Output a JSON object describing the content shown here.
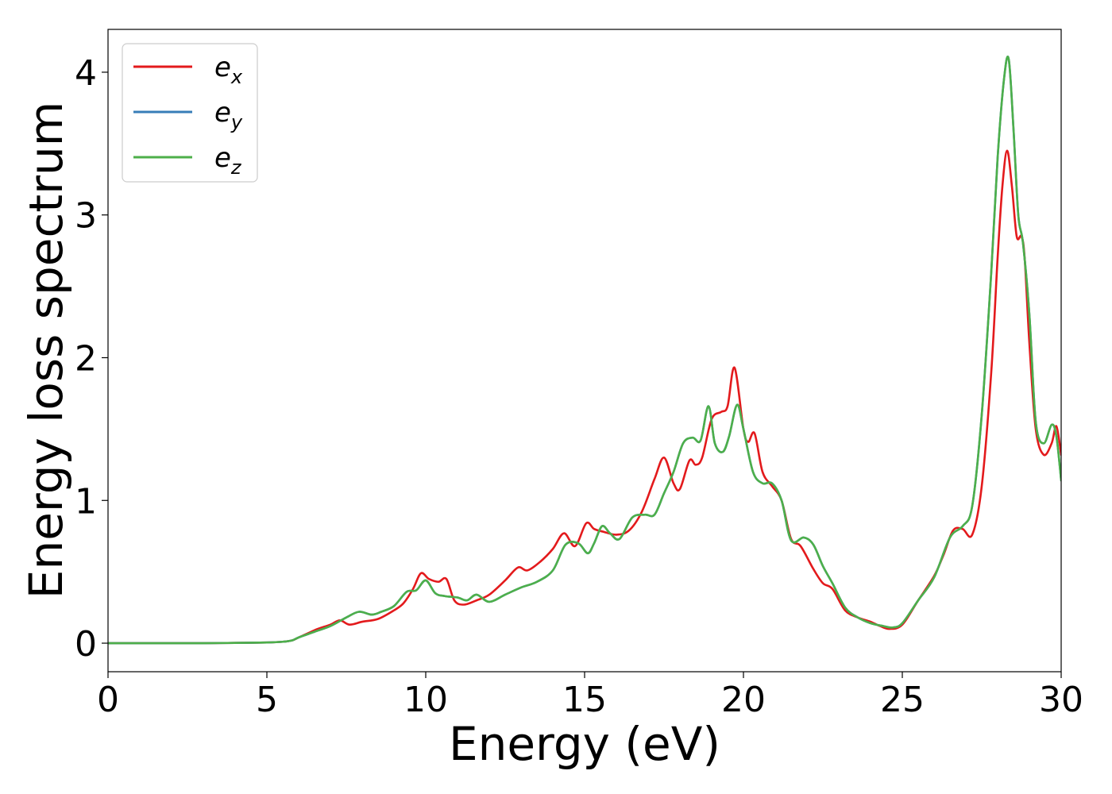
{
  "chart_data": {
    "type": "line",
    "xlabel": "Energy (eV)",
    "ylabel": "Energy loss spectrum",
    "xlim": [
      0,
      30
    ],
    "ylim": [
      -0.2,
      4.3
    ],
    "xticks": [
      0,
      5,
      10,
      15,
      20,
      25,
      30
    ],
    "yticks": [
      0,
      1,
      2,
      3,
      4
    ],
    "grid": false,
    "legend_position": "top-left",
    "series": [
      {
        "name": "e_x",
        "label_main": "e",
        "label_sub": "x",
        "color": "#e31a1c",
        "x": [
          0,
          1,
          2,
          3,
          4,
          5,
          5.5,
          5.8,
          6.0,
          6.3,
          6.6,
          7.0,
          7.3,
          7.6,
          8.0,
          8.5,
          9.0,
          9.3,
          9.6,
          9.85,
          10.1,
          10.4,
          10.65,
          10.9,
          11.2,
          11.6,
          12.0,
          12.5,
          12.9,
          13.2,
          13.6,
          14.0,
          14.35,
          14.7,
          15.05,
          15.3,
          15.6,
          16.0,
          16.4,
          16.8,
          17.2,
          17.5,
          17.8,
          18.0,
          18.3,
          18.5,
          18.7,
          19.0,
          19.3,
          19.5,
          19.72,
          20.0,
          20.15,
          20.35,
          20.6,
          20.9,
          21.2,
          21.5,
          21.8,
          22.2,
          22.5,
          22.8,
          23.2,
          23.6,
          24.0,
          24.3,
          24.6,
          25.0,
          25.5,
          26.0,
          26.3,
          26.6,
          26.9,
          27.2,
          27.5,
          27.8,
          28.0,
          28.15,
          28.3,
          28.45,
          28.6,
          28.75,
          28.85,
          29.0,
          29.2,
          29.45,
          29.7,
          29.85,
          30.0
        ],
        "values": [
          0,
          0,
          0,
          0,
          0.002,
          0.005,
          0.01,
          0.02,
          0.04,
          0.07,
          0.1,
          0.13,
          0.16,
          0.13,
          0.15,
          0.17,
          0.23,
          0.28,
          0.38,
          0.49,
          0.45,
          0.43,
          0.45,
          0.3,
          0.27,
          0.3,
          0.34,
          0.44,
          0.53,
          0.51,
          0.57,
          0.66,
          0.77,
          0.68,
          0.84,
          0.8,
          0.78,
          0.76,
          0.79,
          0.92,
          1.15,
          1.3,
          1.12,
          1.08,
          1.28,
          1.25,
          1.3,
          1.57,
          1.62,
          1.66,
          1.93,
          1.5,
          1.41,
          1.47,
          1.2,
          1.1,
          1.0,
          0.73,
          0.68,
          0.52,
          0.42,
          0.38,
          0.23,
          0.18,
          0.15,
          0.12,
          0.1,
          0.13,
          0.3,
          0.47,
          0.62,
          0.79,
          0.8,
          0.76,
          1.1,
          1.9,
          2.7,
          3.2,
          3.45,
          3.2,
          2.85,
          2.85,
          2.7,
          2.1,
          1.5,
          1.32,
          1.4,
          1.52,
          1.32
        ]
      },
      {
        "name": "e_y",
        "label_main": "e",
        "label_sub": "y",
        "color": "#377eb8",
        "x": [
          0,
          1,
          2,
          3,
          4,
          5,
          5.5,
          5.8,
          6.0,
          6.5,
          7.0,
          7.5,
          7.9,
          8.3,
          8.6,
          9.0,
          9.4,
          9.7,
          10.0,
          10.3,
          10.6,
          11.0,
          11.3,
          11.6,
          12.0,
          12.5,
          13.0,
          13.5,
          14.0,
          14.4,
          14.8,
          15.1,
          15.3,
          15.55,
          15.8,
          16.1,
          16.5,
          16.9,
          17.2,
          17.5,
          17.8,
          18.1,
          18.4,
          18.65,
          18.9,
          19.1,
          19.35,
          19.55,
          19.8,
          20.0,
          20.3,
          20.6,
          20.9,
          21.2,
          21.5,
          21.9,
          22.2,
          22.5,
          22.8,
          23.2,
          23.6,
          24.0,
          24.4,
          24.7,
          25.0,
          25.5,
          26.0,
          26.5,
          26.9,
          27.2,
          27.5,
          27.8,
          28.0,
          28.2,
          28.35,
          28.5,
          28.65,
          28.8,
          29.0,
          29.2,
          29.45,
          29.7,
          29.85,
          30.0
        ],
        "values": [
          0,
          0,
          0,
          0,
          0.002,
          0.005,
          0.01,
          0.02,
          0.04,
          0.08,
          0.12,
          0.18,
          0.22,
          0.2,
          0.22,
          0.26,
          0.36,
          0.37,
          0.44,
          0.35,
          0.33,
          0.32,
          0.3,
          0.34,
          0.29,
          0.34,
          0.39,
          0.43,
          0.51,
          0.69,
          0.7,
          0.63,
          0.7,
          0.82,
          0.77,
          0.73,
          0.88,
          0.9,
          0.9,
          1.05,
          1.2,
          1.4,
          1.44,
          1.42,
          1.66,
          1.4,
          1.34,
          1.45,
          1.67,
          1.5,
          1.2,
          1.12,
          1.12,
          1.0,
          0.72,
          0.74,
          0.69,
          0.54,
          0.42,
          0.25,
          0.18,
          0.14,
          0.12,
          0.11,
          0.14,
          0.3,
          0.46,
          0.74,
          0.82,
          0.96,
          1.6,
          2.6,
          3.4,
          3.95,
          4.09,
          3.6,
          3.0,
          2.8,
          2.3,
          1.55,
          1.4,
          1.53,
          1.45,
          1.14
        ]
      },
      {
        "name": "e_z",
        "label_main": "e",
        "label_sub": "z",
        "color": "#4daf4a",
        "x": [
          0,
          1,
          2,
          3,
          4,
          5,
          5.5,
          5.8,
          6.0,
          6.5,
          7.0,
          7.5,
          7.9,
          8.3,
          8.6,
          9.0,
          9.4,
          9.7,
          10.0,
          10.3,
          10.6,
          11.0,
          11.3,
          11.6,
          12.0,
          12.5,
          13.0,
          13.5,
          14.0,
          14.4,
          14.8,
          15.1,
          15.3,
          15.55,
          15.8,
          16.1,
          16.5,
          16.9,
          17.2,
          17.5,
          17.8,
          18.1,
          18.4,
          18.65,
          18.9,
          19.1,
          19.35,
          19.55,
          19.8,
          20.0,
          20.3,
          20.6,
          20.9,
          21.2,
          21.5,
          21.9,
          22.2,
          22.5,
          22.8,
          23.2,
          23.6,
          24.0,
          24.4,
          24.7,
          25.0,
          25.5,
          26.0,
          26.5,
          26.9,
          27.2,
          27.5,
          27.8,
          28.0,
          28.2,
          28.35,
          28.5,
          28.65,
          28.8,
          29.0,
          29.2,
          29.45,
          29.7,
          29.85,
          30.0
        ],
        "values": [
          0,
          0,
          0,
          0,
          0.002,
          0.005,
          0.01,
          0.02,
          0.04,
          0.08,
          0.12,
          0.18,
          0.22,
          0.2,
          0.22,
          0.26,
          0.36,
          0.37,
          0.44,
          0.35,
          0.33,
          0.32,
          0.3,
          0.34,
          0.29,
          0.34,
          0.39,
          0.43,
          0.51,
          0.69,
          0.7,
          0.63,
          0.7,
          0.82,
          0.77,
          0.73,
          0.88,
          0.9,
          0.9,
          1.05,
          1.2,
          1.4,
          1.44,
          1.42,
          1.66,
          1.4,
          1.34,
          1.45,
          1.67,
          1.5,
          1.2,
          1.12,
          1.12,
          1.0,
          0.72,
          0.74,
          0.69,
          0.54,
          0.42,
          0.25,
          0.18,
          0.14,
          0.12,
          0.11,
          0.14,
          0.3,
          0.46,
          0.74,
          0.82,
          0.96,
          1.6,
          2.6,
          3.4,
          3.95,
          4.09,
          3.6,
          3.0,
          2.8,
          2.3,
          1.55,
          1.4,
          1.53,
          1.45,
          1.14
        ]
      }
    ]
  }
}
